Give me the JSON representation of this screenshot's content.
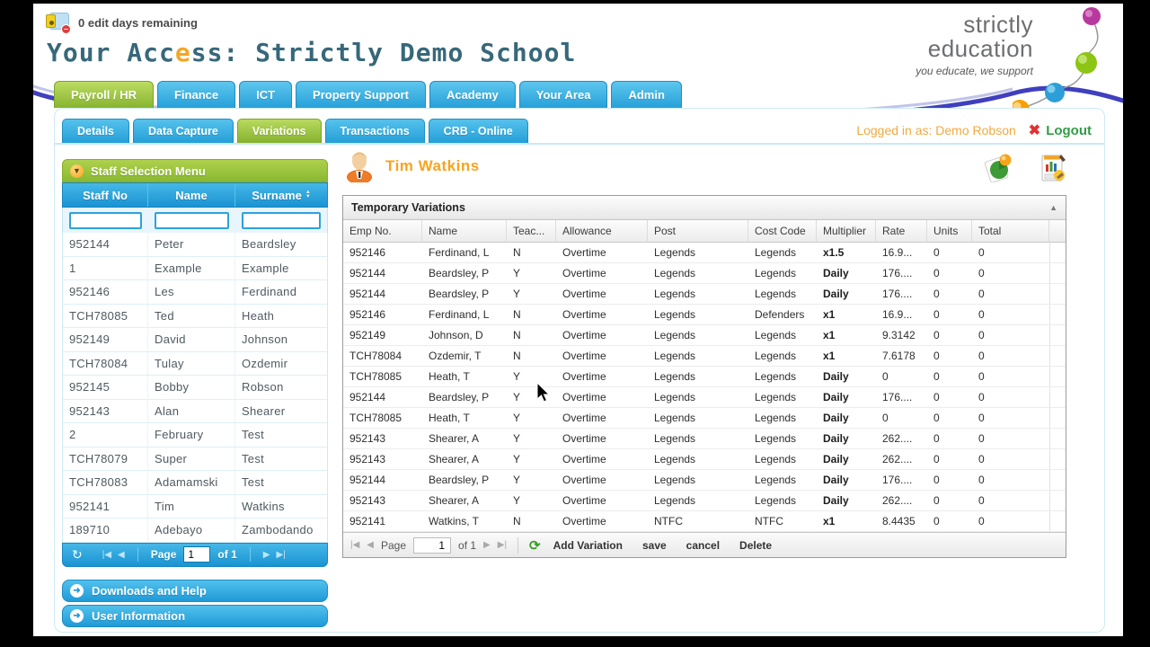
{
  "top_bar": {
    "edit_days_notice": "0 edit days remaining"
  },
  "header": {
    "title_pre": "Your Acc",
    "title_accent": "e",
    "title_post": "ss: Strictly Demo School",
    "logo": {
      "line1": "strictly",
      "line2": "education",
      "tagline": "you educate, we support"
    }
  },
  "main_tabs": [
    {
      "label": "Payroll / HR",
      "active": true
    },
    {
      "label": "Finance",
      "active": false
    },
    {
      "label": "ICT",
      "active": false
    },
    {
      "label": "Property Support",
      "active": false
    },
    {
      "label": "Academy",
      "active": false
    },
    {
      "label": "Your Area",
      "active": false
    },
    {
      "label": "Admin",
      "active": false
    }
  ],
  "sub_tabs": [
    {
      "label": "Details",
      "active": false
    },
    {
      "label": "Data Capture",
      "active": false
    },
    {
      "label": "Variations",
      "active": true
    },
    {
      "label": "Transactions",
      "active": false
    },
    {
      "label": "CRB - Online",
      "active": false
    }
  ],
  "session": {
    "logged_in_as": "Logged in as: Demo Robson",
    "logout_label": "Logout"
  },
  "sidebar": {
    "panel_title": "Staff Selection Menu",
    "columns": [
      "Staff No",
      "Name",
      "Surname"
    ],
    "filter_values": [
      "",
      "",
      ""
    ],
    "rows": [
      [
        "952144",
        "Peter",
        "Beardsley"
      ],
      [
        "1",
        "Example",
        "Example"
      ],
      [
        "952146",
        "Les",
        "Ferdinand"
      ],
      [
        "TCH78085",
        "Ted",
        "Heath"
      ],
      [
        "952149",
        "David",
        "Johnson"
      ],
      [
        "TCH78084",
        "Tulay",
        "Ozdemir"
      ],
      [
        "952145",
        "Bobby",
        "Robson"
      ],
      [
        "952143",
        "Alan",
        "Shearer"
      ],
      [
        "2",
        "February",
        "Test"
      ],
      [
        "TCH78079",
        "Super",
        "Test"
      ],
      [
        "TCH78083",
        "Adamamski",
        "Test"
      ],
      [
        "952141",
        "Tim",
        "Watkins"
      ],
      [
        "189710",
        "Adebayo",
        "Zambodando"
      ]
    ],
    "pagination": {
      "page_label": "Page",
      "page_value": "1",
      "of_label": "of 1"
    },
    "accordions": [
      "Downloads and Help",
      "User Information"
    ]
  },
  "content": {
    "employee_name": "Tim Watkins",
    "panel_title": "Temporary Variations",
    "columns": [
      "Emp No.",
      "Name",
      "Teac...",
      "Allowance",
      "Post",
      "Cost Code",
      "Multiplier",
      "Rate",
      "Units",
      "Total"
    ],
    "rows": [
      [
        "952146",
        "Ferdinand, L",
        "N",
        "Overtime",
        "Legends",
        "Legends",
        "x1.5",
        "16.9...",
        "0",
        "0"
      ],
      [
        "952144",
        "Beardsley, P",
        "Y",
        "Overtime",
        "Legends",
        "Legends",
        "Daily",
        "176....",
        "0",
        "0"
      ],
      [
        "952144",
        "Beardsley, P",
        "Y",
        "Overtime",
        "Legends",
        "Legends",
        "Daily",
        "176....",
        "0",
        "0"
      ],
      [
        "952146",
        "Ferdinand, L",
        "N",
        "Overtime",
        "Legends",
        "Defenders",
        "x1",
        "16.9...",
        "0",
        "0"
      ],
      [
        "952149",
        "Johnson, D",
        "N",
        "Overtime",
        "Legends",
        "Legends",
        "x1",
        "9.3142",
        "0",
        "0"
      ],
      [
        "TCH78084",
        "Ozdemir, T",
        "N",
        "Overtime",
        "Legends",
        "Legends",
        "x1",
        "7.6178",
        "0",
        "0"
      ],
      [
        "TCH78085",
        "Heath, T",
        "Y",
        "Overtime",
        "Legends",
        "Legends",
        "Daily",
        "0",
        "0",
        "0"
      ],
      [
        "952144",
        "Beardsley, P",
        "Y",
        "Overtime",
        "Legends",
        "Legends",
        "Daily",
        "176....",
        "0",
        "0"
      ],
      [
        "TCH78085",
        "Heath, T",
        "Y",
        "Overtime",
        "Legends",
        "Legends",
        "Daily",
        "0",
        "0",
        "0"
      ],
      [
        "952143",
        "Shearer, A",
        "Y",
        "Overtime",
        "Legends",
        "Legends",
        "Daily",
        "262....",
        "0",
        "0"
      ],
      [
        "952143",
        "Shearer, A",
        "Y",
        "Overtime",
        "Legends",
        "Legends",
        "Daily",
        "262....",
        "0",
        "0"
      ],
      [
        "952144",
        "Beardsley, P",
        "Y",
        "Overtime",
        "Legends",
        "Legends",
        "Daily",
        "176....",
        "0",
        "0"
      ],
      [
        "952143",
        "Shearer, A",
        "Y",
        "Overtime",
        "Legends",
        "Legends",
        "Daily",
        "262....",
        "0",
        "0"
      ],
      [
        "952141",
        "Watkins, T",
        "N",
        "Overtime",
        "NTFC",
        "NTFC",
        "x1",
        "8.4435",
        "0",
        "0"
      ]
    ],
    "toolbar": {
      "page_label": "Page",
      "page_value": "1",
      "of_label": "of 1",
      "buttons": [
        "Add Variation",
        "save",
        "cancel",
        "Delete"
      ]
    }
  },
  "colors": {
    "tab_blue": "#26a1d9",
    "tab_green": "#88b430",
    "accent_orange": "#f5a623",
    "logout_green": "#2f9e44",
    "title_teal": "#37687a",
    "swoosh_blue": "#2a2ab8"
  }
}
